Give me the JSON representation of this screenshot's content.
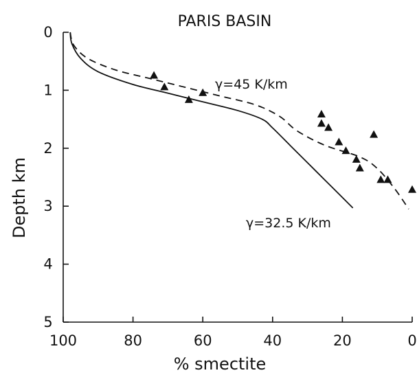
{
  "chart_data": {
    "type": "line",
    "title": "PARIS BASIN",
    "xlabel": "% smectite",
    "ylabel": "Depth km",
    "xlim": [
      100,
      0
    ],
    "ylim": [
      0,
      5
    ],
    "x_ticks": [
      100,
      80,
      60,
      40,
      20,
      0
    ],
    "y_ticks": [
      0,
      1,
      2,
      3,
      4,
      5
    ],
    "grid": false,
    "series": [
      {
        "name": "γ=32.5 K/km",
        "style": "solid",
        "points": [
          [
            98,
            0.0
          ],
          [
            97.5,
            0.2
          ],
          [
            95,
            0.45
          ],
          [
            90,
            0.68
          ],
          [
            80,
            0.9
          ],
          [
            70,
            1.05
          ],
          [
            60,
            1.2
          ],
          [
            50,
            1.35
          ],
          [
            43,
            1.5
          ],
          [
            40,
            1.65
          ],
          [
            35,
            1.95
          ],
          [
            30,
            2.25
          ],
          [
            25,
            2.55
          ],
          [
            20,
            2.85
          ],
          [
            17,
            3.03
          ]
        ]
      },
      {
        "name": "γ=45 K/km",
        "style": "dashed",
        "points": [
          [
            98,
            0.0
          ],
          [
            97,
            0.22
          ],
          [
            93,
            0.45
          ],
          [
            85,
            0.65
          ],
          [
            75,
            0.8
          ],
          [
            65,
            0.95
          ],
          [
            55,
            1.1
          ],
          [
            45,
            1.25
          ],
          [
            38,
            1.45
          ],
          [
            33,
            1.7
          ],
          [
            25,
            1.95
          ],
          [
            15,
            2.15
          ],
          [
            10,
            2.35
          ],
          [
            5,
            2.7
          ],
          [
            1,
            3.05
          ]
        ]
      }
    ],
    "observations": {
      "marker": "triangle",
      "points": [
        [
          74,
          0.75
        ],
        [
          71,
          0.95
        ],
        [
          64,
          1.17
        ],
        [
          60,
          1.05
        ],
        [
          26,
          1.42
        ],
        [
          26,
          1.58
        ],
        [
          24,
          1.65
        ],
        [
          21,
          1.9
        ],
        [
          19,
          2.05
        ],
        [
          16,
          2.2
        ],
        [
          15,
          2.35
        ],
        [
          11,
          1.77
        ],
        [
          9,
          2.55
        ],
        [
          7,
          2.55
        ],
        [
          0,
          2.72
        ]
      ]
    },
    "annotations": {
      "dashed_curve": "γ=45  K/km",
      "solid_curve": "γ=32.5  K/km"
    }
  }
}
